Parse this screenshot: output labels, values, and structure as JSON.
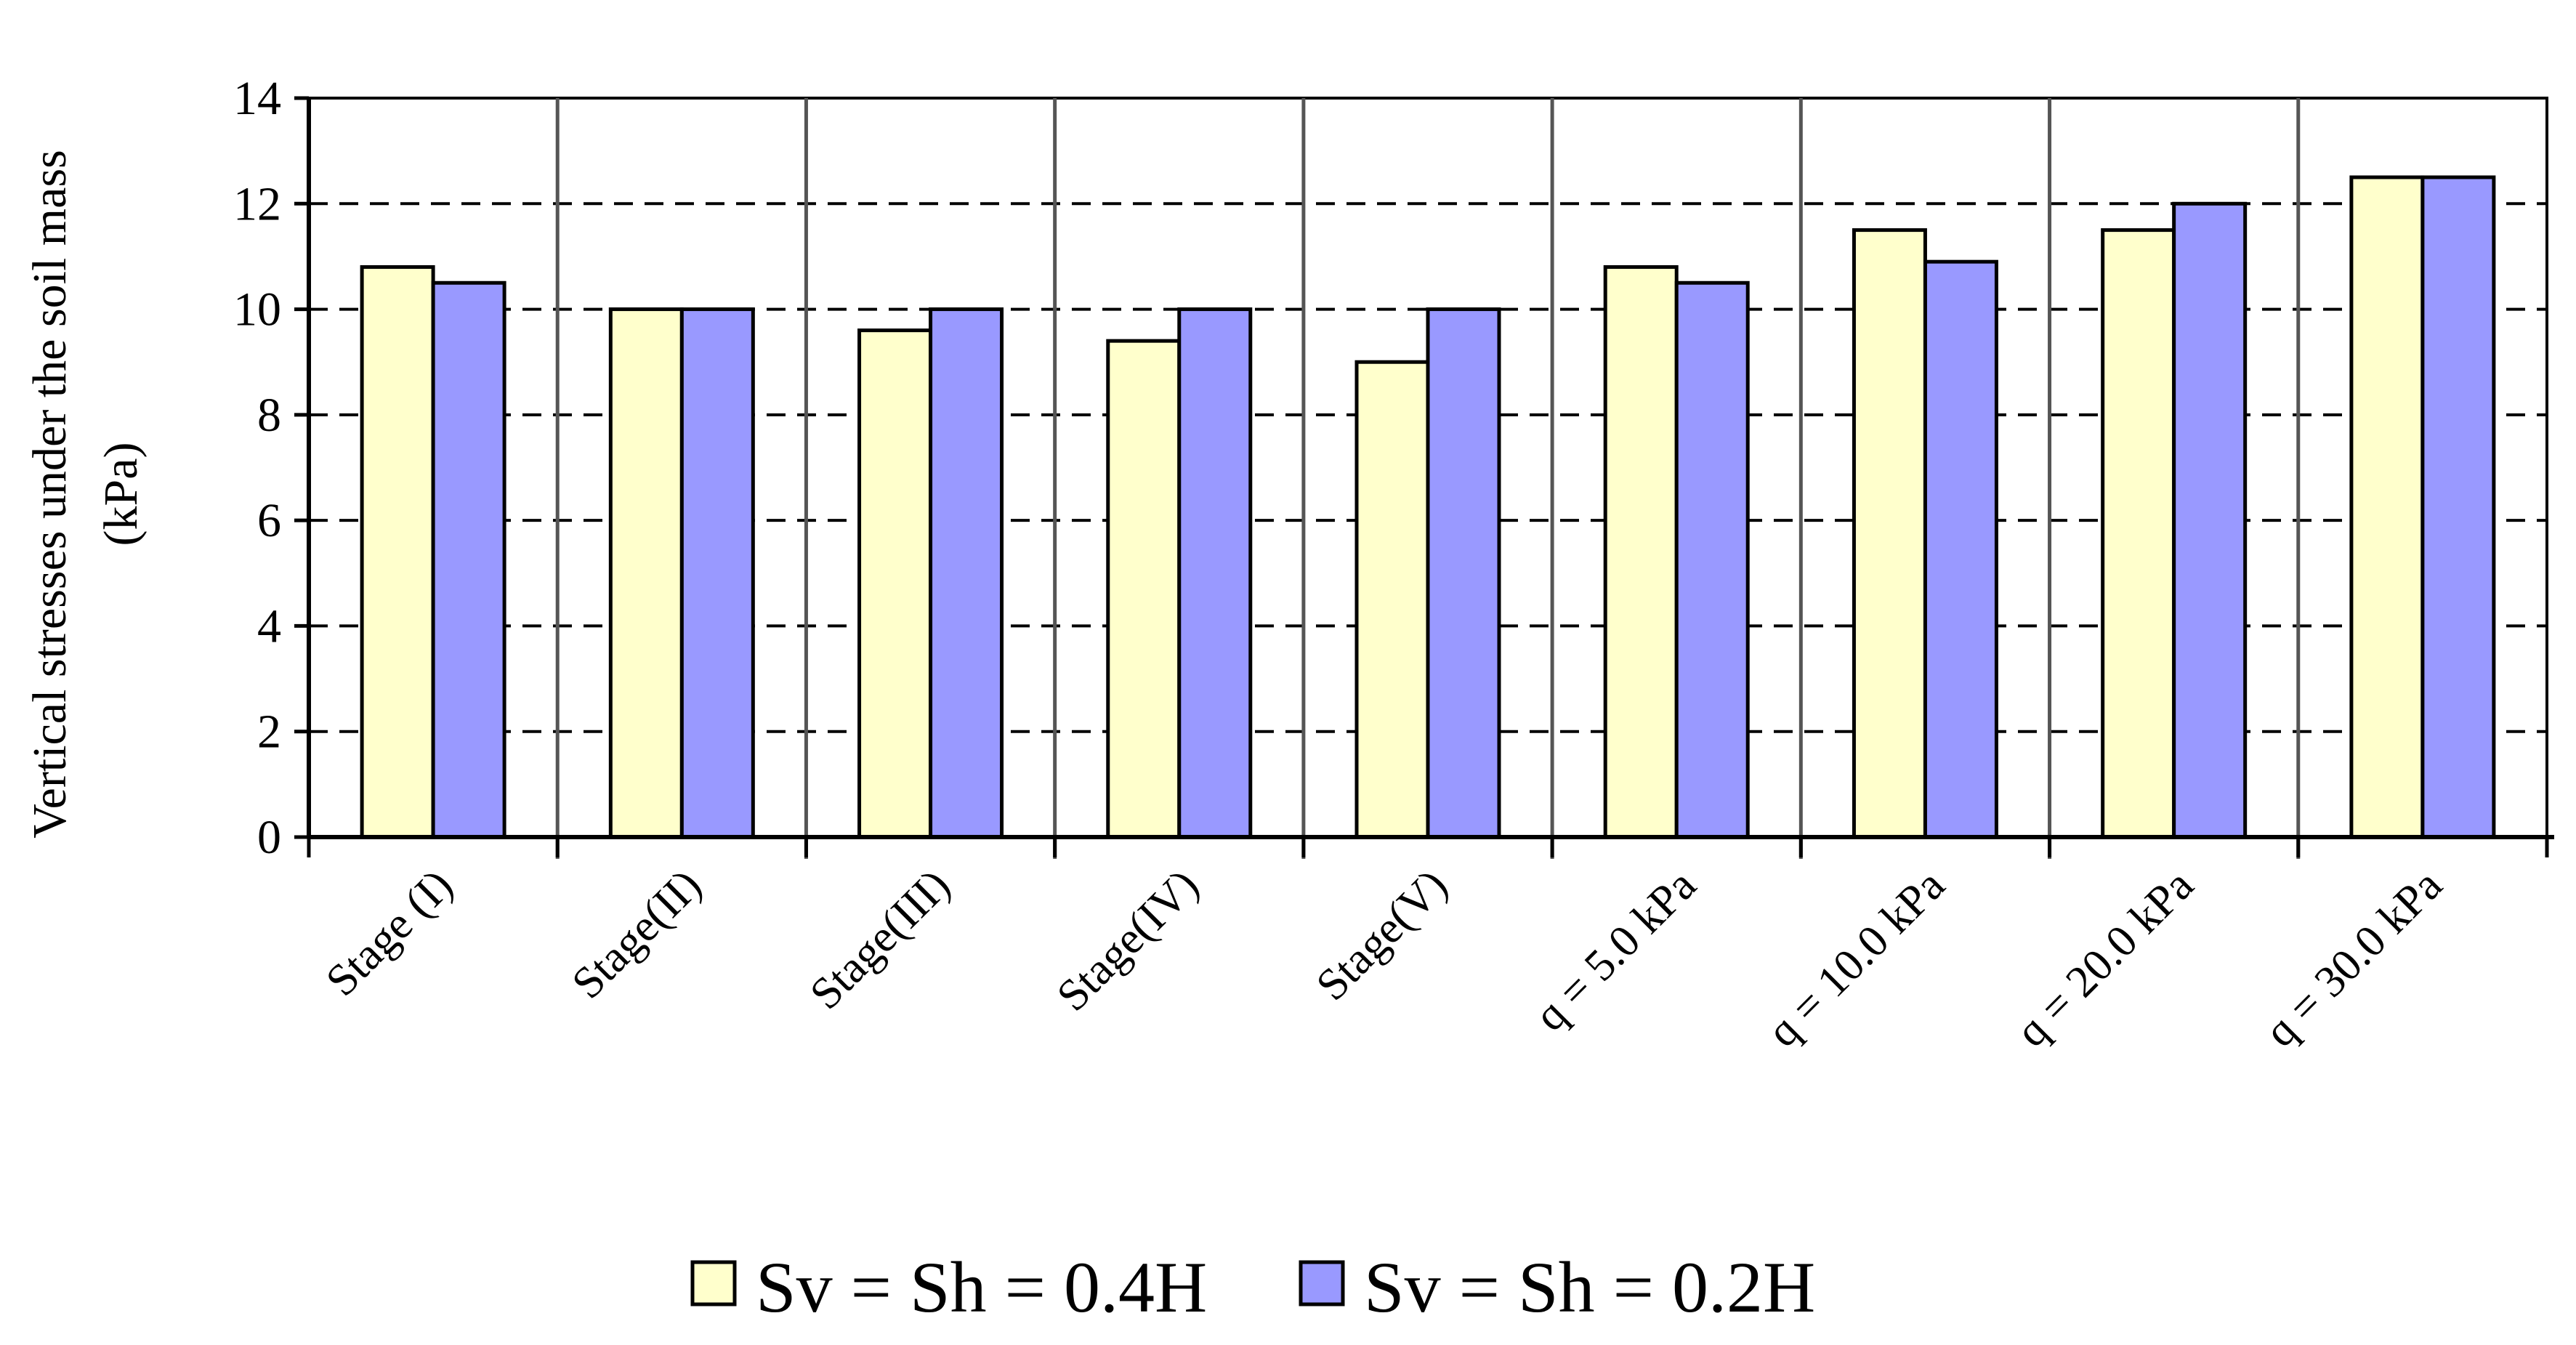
{
  "chart_data": {
    "type": "bar",
    "title": "",
    "xlabel": "",
    "ylabel_lines": [
      "Vertical stresses under the soil mass",
      "(kPa)"
    ],
    "categories": [
      "Stage (I)",
      "Stage(II)",
      "Stage(III)",
      "Stage(IV)",
      "Stage(V)",
      "q = 5.0 kPa",
      "q = 10.0 kPa",
      "q = 20.0 kPa",
      "q = 30.0 kPa"
    ],
    "series": [
      {
        "name": "Sv = Sh = 0.4H",
        "color": "#ffffcc",
        "values": [
          10.8,
          10.0,
          9.6,
          9.4,
          9.0,
          10.8,
          11.5,
          11.5,
          12.5
        ]
      },
      {
        "name": "Sv = Sh = 0.2H",
        "color": "#9999ff",
        "values": [
          10.5,
          10.0,
          10.0,
          10.0,
          10.0,
          10.5,
          10.9,
          12.0,
          12.5
        ]
      }
    ],
    "ylim": [
      0,
      14
    ],
    "yticks": [
      "0",
      "2",
      "4",
      "6",
      "8",
      "10",
      "12",
      "14"
    ],
    "grid": "horizontal dashed",
    "legend_position": "bottom-center"
  }
}
